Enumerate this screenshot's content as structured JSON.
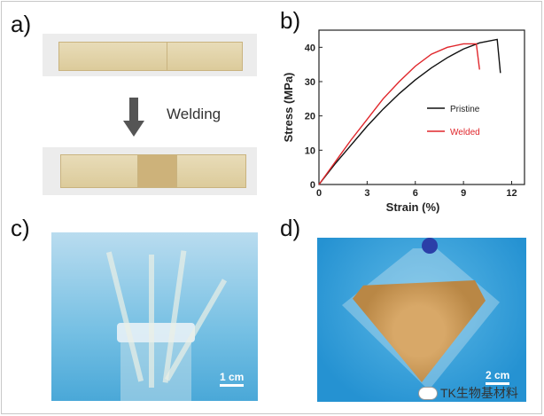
{
  "panels": {
    "a": "a)",
    "b": "b)",
    "c": "c)",
    "d": "d)"
  },
  "panel_a": {
    "arrow_label": "Welding"
  },
  "panel_c": {
    "scale_bar": "1 cm"
  },
  "panel_d": {
    "scale_bar": "2 cm"
  },
  "watermark": "TK生物基材料",
  "chart_data": {
    "type": "line",
    "title": "",
    "xlabel": "Strain (%)",
    "ylabel": "Stress (MPa)",
    "xlim": [
      0,
      12.8
    ],
    "ylim": [
      0,
      45
    ],
    "xticks": [
      0,
      3,
      6,
      9,
      12
    ],
    "yticks": [
      0,
      10,
      20,
      30,
      40
    ],
    "legend_position": "center-right",
    "series": [
      {
        "name": "Pristine",
        "color": "#111111",
        "x": [
          0,
          1,
          2,
          3,
          4,
          5,
          6,
          7,
          8,
          9,
          10,
          11.1,
          11.3
        ],
        "y": [
          0,
          6,
          11.5,
          17,
          22,
          26.5,
          30.5,
          34,
          37,
          39.5,
          41.3,
          42.3,
          32.5
        ]
      },
      {
        "name": "Welded",
        "color": "#e0262b",
        "x": [
          0,
          1,
          2,
          3,
          4,
          5,
          6,
          7,
          8,
          9,
          9.8,
          10
        ],
        "y": [
          0,
          6.5,
          13,
          19,
          25,
          30,
          34.5,
          38,
          40,
          41,
          41,
          33.5
        ]
      }
    ]
  }
}
